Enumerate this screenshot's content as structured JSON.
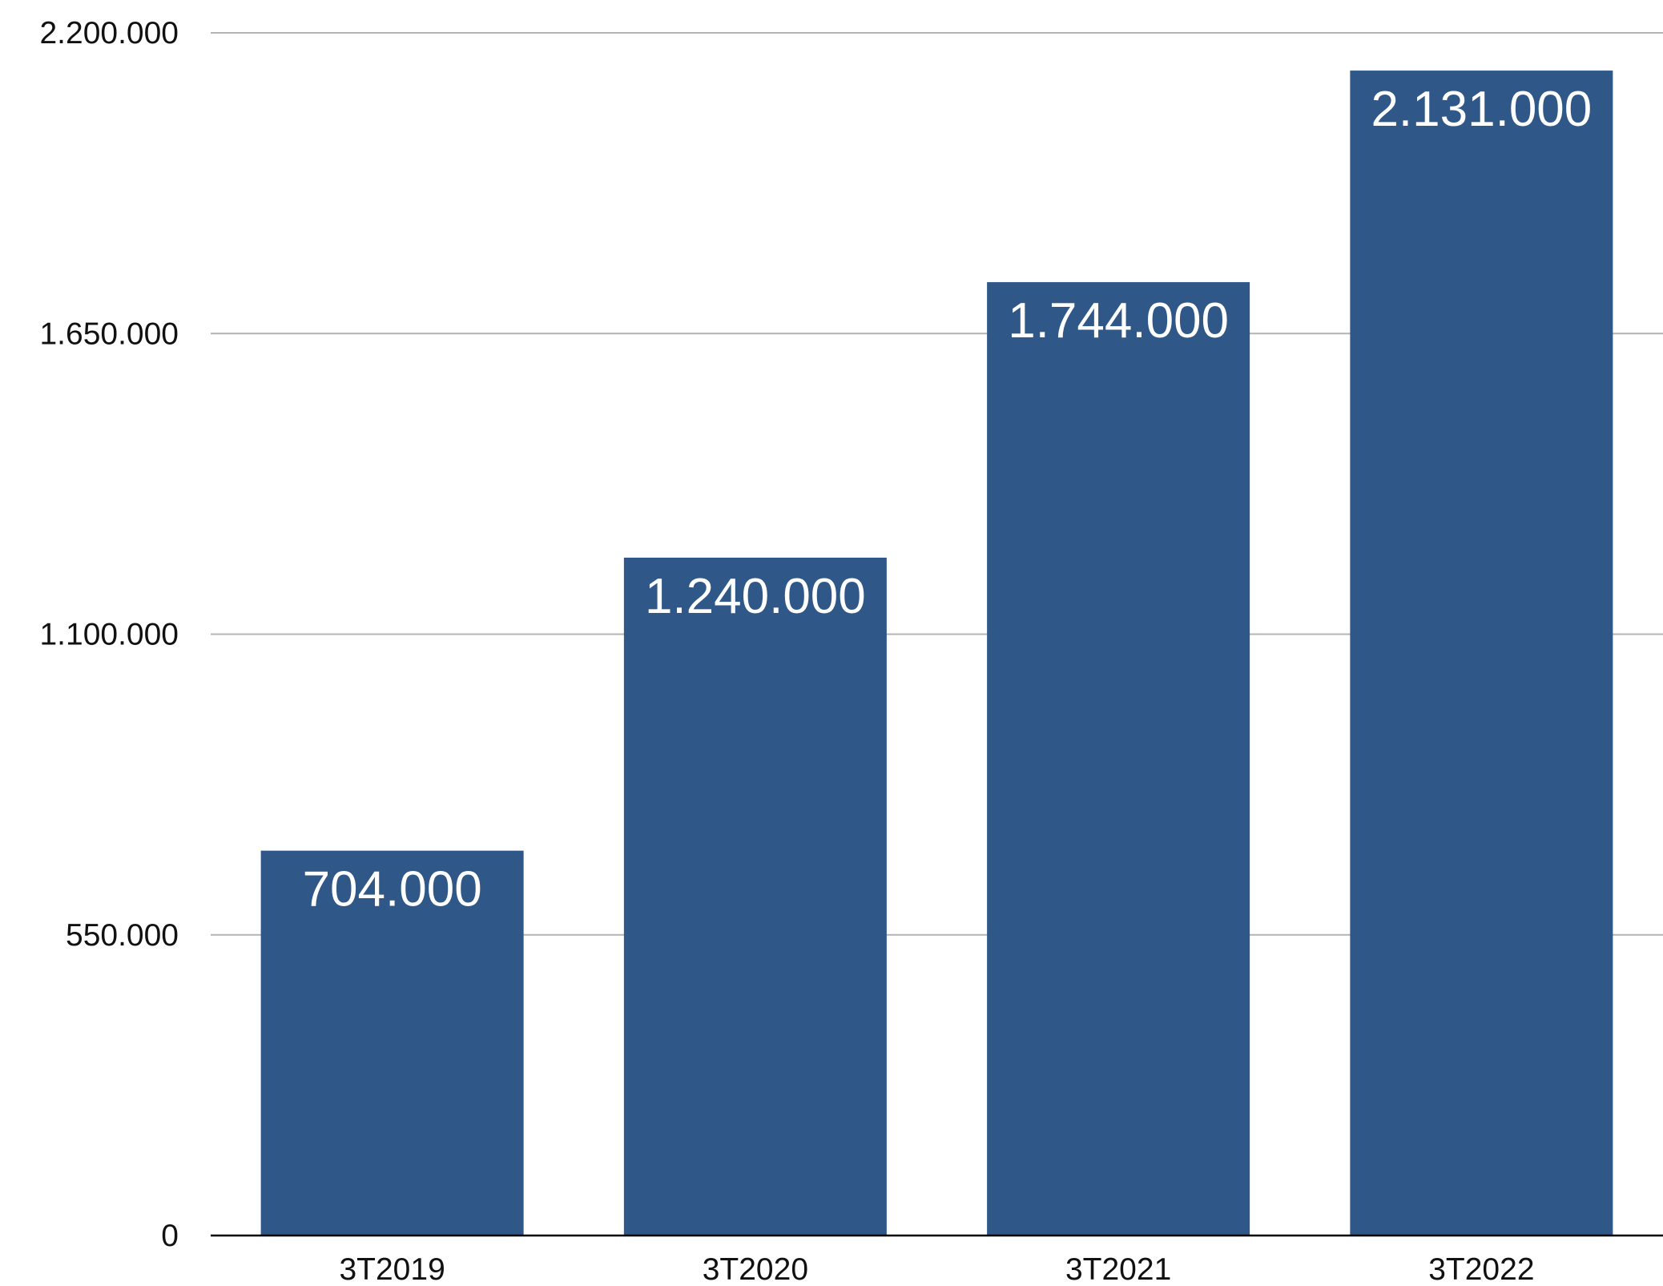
{
  "chart_data": {
    "type": "bar",
    "title": "",
    "xlabel": "",
    "ylabel": "",
    "categories": [
      "3T2019",
      "3T2020",
      "3T2021",
      "3T2022"
    ],
    "values": [
      704000,
      1240000,
      1744000,
      2131000
    ],
    "value_labels": [
      "704.000",
      "1.240.000",
      "1.744.000",
      "2.131.000"
    ],
    "ylim": [
      0,
      2200000
    ],
    "yticks": [
      0,
      550000,
      1100000,
      1650000,
      2200000
    ],
    "ytick_labels": [
      "0",
      "550.000",
      "1.100.000",
      "1.650.000",
      "2.200.000"
    ],
    "grid": true,
    "legend": "none",
    "bar_color": "#2f5889"
  }
}
